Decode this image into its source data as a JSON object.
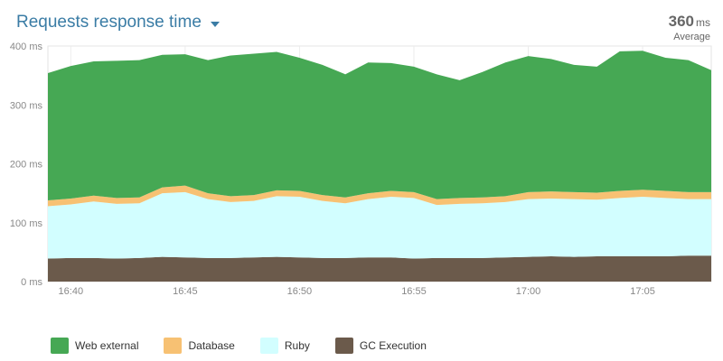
{
  "header": {
    "title": "Requests response time",
    "average_value": "360",
    "average_unit": "ms",
    "average_label": "Average"
  },
  "colors": {
    "web_external": "#46a854",
    "database": "#f7c173",
    "ruby": "#d2feff",
    "gc_execution": "#6b5a4b",
    "accent": "#3a7ca5"
  },
  "chart_data": {
    "type": "area",
    "stacked": true,
    "x": [
      "16:39",
      "16:40",
      "16:41",
      "16:42",
      "16:43",
      "16:44",
      "16:45",
      "16:46",
      "16:47",
      "16:48",
      "16:49",
      "16:50",
      "16:51",
      "16:52",
      "16:53",
      "16:54",
      "16:55",
      "16:56",
      "16:57",
      "16:58",
      "16:59",
      "17:00",
      "17:01",
      "17:02",
      "17:03",
      "17:04",
      "17:05",
      "17:06",
      "17:07",
      "17:08"
    ],
    "x_tick_labels": [
      "16:40",
      "16:45",
      "16:50",
      "16:55",
      "17:00",
      "17:05"
    ],
    "y_tick_labels": [
      "0 ms",
      "100 ms",
      "200 ms",
      "300 ms",
      "400 ms"
    ],
    "ylim": [
      0,
      400
    ],
    "grid": true,
    "legend_position": "bottom",
    "series": [
      {
        "name": "GC Execution",
        "color_key": "gc_execution",
        "values": [
          39,
          40,
          40,
          39,
          40,
          42,
          41,
          40,
          40,
          41,
          42,
          41,
          40,
          40,
          41,
          41,
          39,
          40,
          40,
          40,
          41,
          42,
          43,
          42,
          43,
          43,
          43,
          43,
          44,
          44
        ]
      },
      {
        "name": "Ruby",
        "color_key": "ruby",
        "values": [
          89,
          91,
          96,
          93,
          93,
          108,
          111,
          100,
          95,
          96,
          103,
          103,
          97,
          93,
          99,
          103,
          103,
          90,
          92,
          93,
          94,
          98,
          98,
          98,
          96,
          99,
          101,
          99,
          96,
          96
        ]
      },
      {
        "name": "Database",
        "color_key": "database",
        "values": [
          10,
          10,
          10,
          10,
          10,
          10,
          11,
          10,
          10,
          10,
          10,
          10,
          10,
          10,
          10,
          10,
          10,
          10,
          10,
          10,
          10,
          12,
          12,
          12,
          12,
          12,
          12,
          12,
          12,
          12
        ]
      },
      {
        "name": "Web external",
        "color_key": "web_external",
        "values": [
          216,
          225,
          228,
          233,
          233,
          225,
          223,
          226,
          239,
          240,
          235,
          226,
          221,
          209,
          222,
          217,
          213,
          212,
          200,
          213,
          227,
          231,
          225,
          216,
          214,
          237,
          236,
          226,
          224,
          207
        ]
      }
    ]
  }
}
